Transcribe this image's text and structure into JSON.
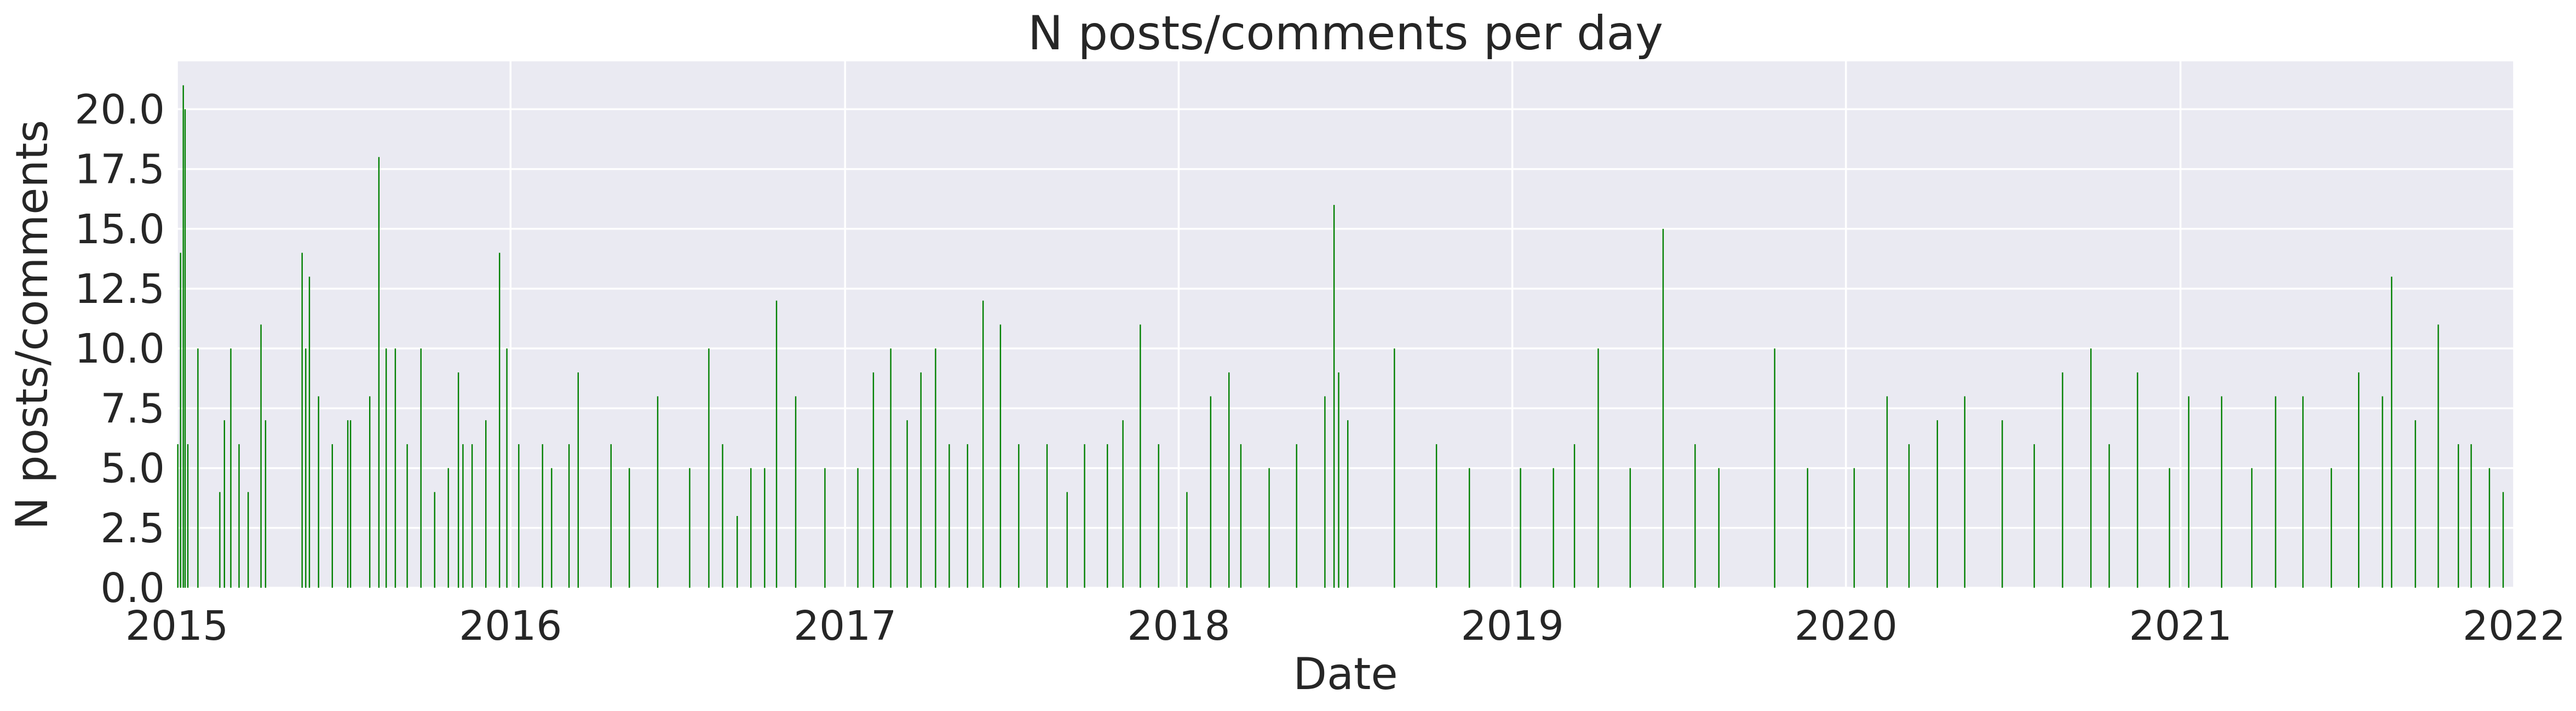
{
  "chart_data": {
    "type": "bar",
    "title": "N posts/comments per day",
    "xlabel": "Date",
    "ylabel": "N posts/comments",
    "x_range": [
      "2015-01-01",
      "2022-01-01"
    ],
    "ylim": [
      0,
      22
    ],
    "x_ticks": [
      "2015",
      "2016",
      "2017",
      "2018",
      "2019",
      "2020",
      "2021",
      "2022"
    ],
    "y_ticks": [
      "0.0",
      "2.5",
      "5.0",
      "7.5",
      "10.0",
      "12.5",
      "15.0",
      "17.5",
      "20.0"
    ],
    "grid": true,
    "legend": "none",
    "colors": {
      "bar": "#008000",
      "plot_background": "#eaeaf2",
      "grid": "#ffffff"
    },
    "series": [
      {
        "points": [
          [
            "2015-01-02",
            6
          ],
          [
            "2015-01-05",
            14
          ],
          [
            "2015-01-08",
            21
          ],
          [
            "2015-01-10",
            20
          ],
          [
            "2015-01-13",
            6
          ],
          [
            "2015-01-24",
            10
          ],
          [
            "2015-02-17",
            4
          ],
          [
            "2015-02-22",
            7
          ],
          [
            "2015-03-01",
            10
          ],
          [
            "2015-03-10",
            6
          ],
          [
            "2015-03-20",
            4
          ],
          [
            "2015-04-03",
            11
          ],
          [
            "2015-04-08",
            7
          ],
          [
            "2015-05-18",
            14
          ],
          [
            "2015-05-22",
            10
          ],
          [
            "2015-05-26",
            13
          ],
          [
            "2015-06-05",
            8
          ],
          [
            "2015-06-20",
            6
          ],
          [
            "2015-07-07",
            7
          ],
          [
            "2015-07-10",
            7
          ],
          [
            "2015-07-31",
            8
          ],
          [
            "2015-08-10",
            18
          ],
          [
            "2015-08-18",
            10
          ],
          [
            "2015-08-28",
            10
          ],
          [
            "2015-09-10",
            6
          ],
          [
            "2015-09-25",
            10
          ],
          [
            "2015-10-10",
            4
          ],
          [
            "2015-10-25",
            5
          ],
          [
            "2015-11-05",
            9
          ],
          [
            "2015-11-10",
            6
          ],
          [
            "2015-11-20",
            6
          ],
          [
            "2015-12-05",
            7
          ],
          [
            "2015-12-20",
            14
          ],
          [
            "2015-12-28",
            10
          ],
          [
            "2016-01-10",
            6
          ],
          [
            "2016-02-05",
            6
          ],
          [
            "2016-02-15",
            5
          ],
          [
            "2016-03-05",
            6
          ],
          [
            "2016-03-15",
            9
          ],
          [
            "2016-04-20",
            6
          ],
          [
            "2016-05-10",
            5
          ],
          [
            "2016-06-10",
            8
          ],
          [
            "2016-07-15",
            5
          ],
          [
            "2016-08-05",
            10
          ],
          [
            "2016-08-20",
            6
          ],
          [
            "2016-09-05",
            3
          ],
          [
            "2016-09-20",
            5
          ],
          [
            "2016-10-05",
            5
          ],
          [
            "2016-10-18",
            12
          ],
          [
            "2016-11-08",
            8
          ],
          [
            "2016-12-10",
            5
          ],
          [
            "2017-01-15",
            5
          ],
          [
            "2017-02-01",
            9
          ],
          [
            "2017-02-20",
            10
          ],
          [
            "2017-03-10",
            7
          ],
          [
            "2017-03-25",
            9
          ],
          [
            "2017-04-10",
            10
          ],
          [
            "2017-04-25",
            6
          ],
          [
            "2017-05-15",
            6
          ],
          [
            "2017-06-01",
            12
          ],
          [
            "2017-06-20",
            11
          ],
          [
            "2017-07-10",
            6
          ],
          [
            "2017-08-10",
            6
          ],
          [
            "2017-09-01",
            4
          ],
          [
            "2017-09-20",
            6
          ],
          [
            "2017-10-15",
            6
          ],
          [
            "2017-11-01",
            7
          ],
          [
            "2017-11-20",
            11
          ],
          [
            "2017-12-10",
            6
          ],
          [
            "2018-01-10",
            4
          ],
          [
            "2018-02-05",
            8
          ],
          [
            "2018-02-25",
            9
          ],
          [
            "2018-03-10",
            6
          ],
          [
            "2018-04-10",
            5
          ],
          [
            "2018-05-10",
            6
          ],
          [
            "2018-06-10",
            8
          ],
          [
            "2018-06-20",
            16
          ],
          [
            "2018-06-25",
            9
          ],
          [
            "2018-07-05",
            7
          ],
          [
            "2018-08-25",
            10
          ],
          [
            "2018-10-10",
            6
          ],
          [
            "2018-11-15",
            5
          ],
          [
            "2019-01-10",
            5
          ],
          [
            "2019-02-15",
            5
          ],
          [
            "2019-03-10",
            6
          ],
          [
            "2019-04-05",
            10
          ],
          [
            "2019-05-10",
            5
          ],
          [
            "2019-06-15",
            15
          ],
          [
            "2019-07-20",
            6
          ],
          [
            "2019-08-15",
            5
          ],
          [
            "2019-10-15",
            10
          ],
          [
            "2019-11-20",
            5
          ],
          [
            "2020-01-10",
            5
          ],
          [
            "2020-02-15",
            8
          ],
          [
            "2020-03-10",
            6
          ],
          [
            "2020-04-10",
            7
          ],
          [
            "2020-05-10",
            8
          ],
          [
            "2020-06-20",
            7
          ],
          [
            "2020-07-25",
            6
          ],
          [
            "2020-08-25",
            9
          ],
          [
            "2020-09-25",
            10
          ],
          [
            "2020-10-15",
            6
          ],
          [
            "2020-11-15",
            9
          ],
          [
            "2020-12-20",
            5
          ],
          [
            "2021-01-10",
            8
          ],
          [
            "2021-02-15",
            8
          ],
          [
            "2021-03-20",
            5
          ],
          [
            "2021-04-15",
            8
          ],
          [
            "2021-05-15",
            8
          ],
          [
            "2021-06-15",
            5
          ],
          [
            "2021-07-15",
            9
          ],
          [
            "2021-08-10",
            8
          ],
          [
            "2021-08-20",
            13
          ],
          [
            "2021-09-15",
            7
          ],
          [
            "2021-10-10",
            11
          ],
          [
            "2021-11-01",
            6
          ],
          [
            "2021-11-15",
            6
          ],
          [
            "2021-12-05",
            5
          ],
          [
            "2021-12-20",
            4
          ]
        ]
      }
    ]
  }
}
